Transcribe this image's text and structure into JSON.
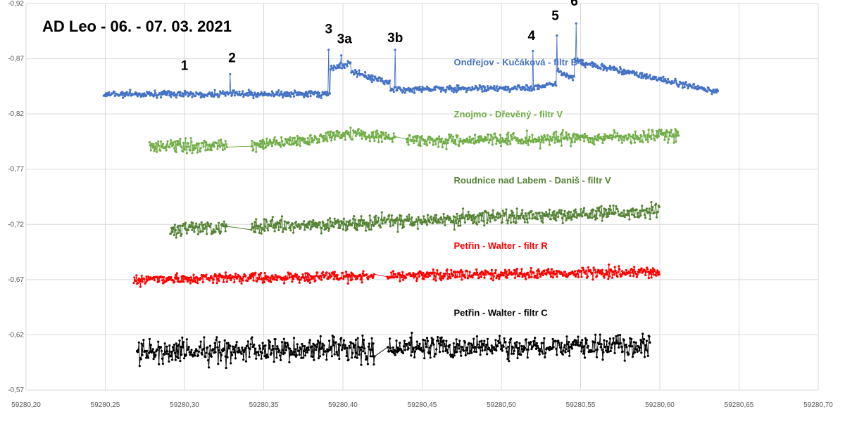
{
  "chart_data": {
    "type": "line",
    "title": "AD Leo - 06. - 07. 03. 2021",
    "xlim": [
      59280.2,
      59280.7
    ],
    "ylim": [
      -0.92,
      -0.57
    ],
    "y_reversed": true,
    "grid": true,
    "x_ticks": [
      "59280,20",
      "59280,25",
      "59280,30",
      "59280,35",
      "59280,40",
      "59280,45",
      "59280,50",
      "59280,55",
      "59280,60",
      "59280,65",
      "59280,70"
    ],
    "x_tick_values": [
      59280.2,
      59280.25,
      59280.3,
      59280.35,
      59280.4,
      59280.45,
      59280.5,
      59280.55,
      59280.6,
      59280.65,
      59280.7
    ],
    "y_ticks": [
      "-0,92",
      "-0,87",
      "-0,82",
      "-0,77",
      "-0,72",
      "-0,67",
      "-0,62",
      "-0,57"
    ],
    "y_tick_values": [
      -0.92,
      -0.87,
      -0.82,
      -0.77,
      -0.72,
      -0.67,
      -0.62,
      -0.57
    ],
    "series": [
      {
        "name": "Ondřejov - Kučáková - filtr B",
        "color": "#4472C4",
        "x_start": 59280.249,
        "x_end": 59280.637,
        "baseline": -0.838,
        "noise": 0.003,
        "segments": [
          {
            "x0": 59280.249,
            "x1": 59280.392,
            "y0": -0.838,
            "y1": -0.838
          },
          {
            "x0": 59280.392,
            "x1": 59280.405,
            "y0": -0.862,
            "y1": -0.866
          },
          {
            "x0": 59280.405,
            "x1": 59280.43,
            "y0": -0.858,
            "y1": -0.848
          },
          {
            "x0": 59280.43,
            "x1": 59280.52,
            "y0": -0.842,
            "y1": -0.844
          },
          {
            "x0": 59280.52,
            "x1": 59280.535,
            "y0": -0.844,
            "y1": -0.848
          },
          {
            "x0": 59280.535,
            "x1": 59280.546,
            "y0": -0.86,
            "y1": -0.852
          },
          {
            "x0": 59280.546,
            "x1": 59280.637,
            "y0": -0.868,
            "y1": -0.84
          }
        ],
        "flares": [
          {
            "x": 59280.329,
            "y": -0.856
          },
          {
            "x": 59280.391,
            "y": -0.878
          },
          {
            "x": 59280.399,
            "y": -0.873
          },
          {
            "x": 59280.433,
            "y": -0.878
          },
          {
            "x": 59280.52,
            "y": -0.877
          },
          {
            "x": 59280.535,
            "y": -0.891
          },
          {
            "x": 59280.547,
            "y": -0.902
          }
        ],
        "label_x": 59280.47,
        "label_y": -0.864
      },
      {
        "name": "Znojmo - Dřevěný - filtr V",
        "color": "#70AD47",
        "x_start": 59280.278,
        "x_end": 59280.612,
        "gaps": [
          [
            59280.327,
            59280.342
          ],
          [
            59280.433,
            59280.44
          ]
        ],
        "baseline": -0.79,
        "trend_end": -0.8,
        "bump_center": 59280.405,
        "bump_amp": -0.008,
        "noise": 0.006,
        "label_x": 59280.47,
        "label_y": -0.817
      },
      {
        "name": "Roudnice nad Labem - Daniš - filtr V",
        "color": "#548235",
        "x_start": 59280.291,
        "x_end": 59280.6,
        "gaps": [
          [
            59280.327,
            59280.342
          ]
        ],
        "baseline": -0.715,
        "trend_end": -0.732,
        "noise": 0.007,
        "label_x": 59280.47,
        "label_y": -0.757
      },
      {
        "name": "Petřin - Walter - filtr R",
        "color": "#FF0000",
        "x_start": 59280.268,
        "x_end": 59280.6,
        "gaps": [
          [
            59280.42,
            59280.428
          ]
        ],
        "baseline": -0.67,
        "trend_end": -0.677,
        "noise": 0.005,
        "label_x": 59280.47,
        "label_y": -0.698
      },
      {
        "name": "Petřin - Walter - filtr C",
        "color": "#000000",
        "x_start": 59280.27,
        "x_end": 59280.594,
        "gaps": [
          [
            59280.42,
            59280.428
          ]
        ],
        "baseline": -0.605,
        "trend_end": -0.61,
        "noise": 0.011,
        "label_x": 59280.47,
        "label_y": -0.637
      }
    ],
    "annotations": [
      {
        "text": "1",
        "x": 59280.3,
        "y": -0.86
      },
      {
        "text": "2",
        "x": 59280.33,
        "y": -0.867
      },
      {
        "text": "3",
        "x": 59280.391,
        "y": -0.893
      },
      {
        "text": "3a",
        "x": 59280.401,
        "y": -0.884
      },
      {
        "text": "3b",
        "x": 59280.433,
        "y": -0.885
      },
      {
        "text": "4",
        "x": 59280.519,
        "y": -0.887
      },
      {
        "text": "5",
        "x": 59280.534,
        "y": -0.905
      },
      {
        "text": "6",
        "x": 59280.546,
        "y": -0.918
      }
    ]
  }
}
